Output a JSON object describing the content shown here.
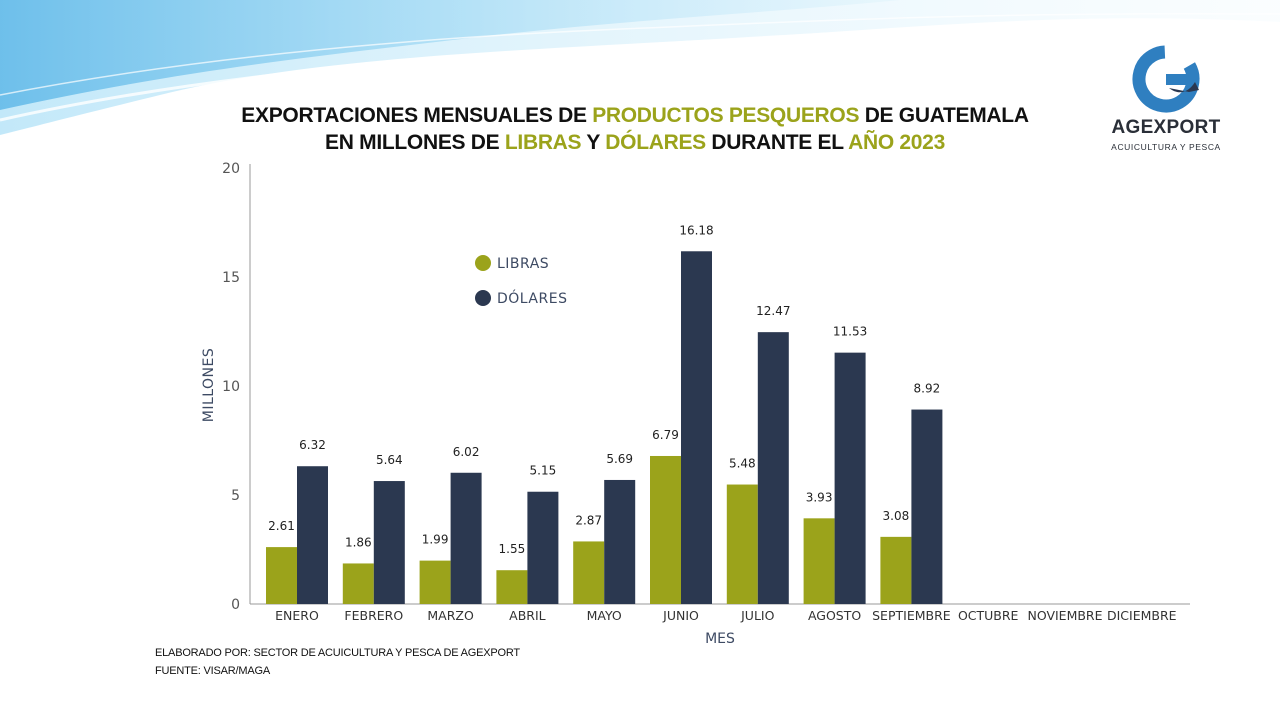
{
  "header": {
    "title_parts": [
      {
        "text": "EXPORTACIONES MENSUALES DE ",
        "hl": false
      },
      {
        "text": "PRODUCTOS PESQUEROS",
        "hl": true
      },
      {
        "text": " DE GUATEMALA",
        "hl": false
      },
      {
        "br": true
      },
      {
        "text": "EN MILLONES DE ",
        "hl": false
      },
      {
        "text": "LIBRAS",
        "hl": true
      },
      {
        "text": " Y ",
        "hl": false
      },
      {
        "text": "DÓLARES",
        "hl": true
      },
      {
        "text": " DURANTE EL ",
        "hl": false
      },
      {
        "text": "AÑO 2023",
        "hl": true
      }
    ]
  },
  "logo": {
    "name": "AGEXPORT",
    "subtitle": "ACUICULTURA Y PESCA",
    "icon": "agexport-g-icon"
  },
  "colors": {
    "libras": "#9ba31b",
    "dolares": "#2b3850",
    "title_highlight": "#9ba31b",
    "axis_text": "#555555"
  },
  "chart_data": {
    "type": "bar",
    "categories": [
      "ENERO",
      "FEBRERO",
      "MARZO",
      "ABRIL",
      "MAYO",
      "JUNIO",
      "JULIO",
      "AGOSTO",
      "SEPTIEMBRE",
      "OCTUBRE",
      "NOVIEMBRE",
      "DICIEMBRE"
    ],
    "series": [
      {
        "name": "LIBRAS",
        "color": "#9ba31b",
        "values": [
          2.61,
          1.86,
          1.99,
          1.55,
          2.87,
          6.79,
          5.48,
          3.93,
          3.08,
          null,
          null,
          null
        ]
      },
      {
        "name": "DÓLARES",
        "color": "#2b3850",
        "values": [
          6.32,
          5.64,
          6.02,
          5.15,
          5.69,
          16.18,
          12.47,
          11.53,
          8.92,
          null,
          null,
          null
        ]
      }
    ],
    "xlabel": "MES",
    "ylabel": "MILLONES",
    "ylim": [
      0,
      20
    ],
    "yticks": [
      0,
      5,
      10,
      15,
      20
    ],
    "grid": false,
    "legend_position": "top-left"
  },
  "footer": {
    "line1": "ELABORADO POR: SECTOR DE ACUICULTURA Y PESCA DE AGEXPORT",
    "line2": "FUENTE: VISAR/MAGA"
  }
}
